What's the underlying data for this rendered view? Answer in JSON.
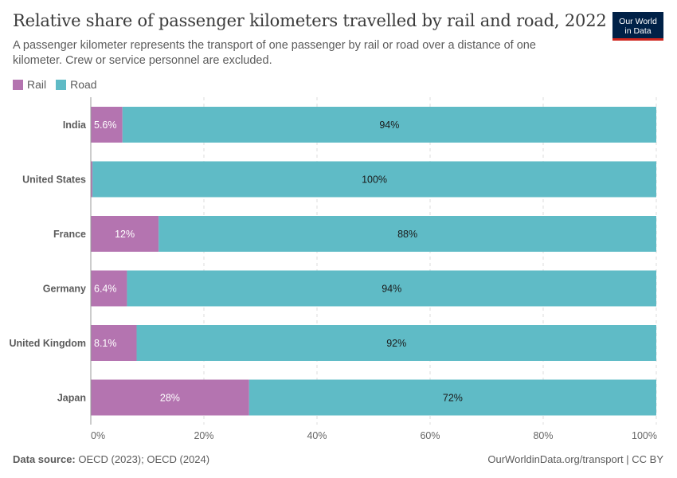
{
  "header": {
    "title": "Relative share of passenger kilometers travelled by rail and road, 2022",
    "subtitle": "A passenger kilometer represents the transport of one passenger by rail or road over a distance of one kilometer. Crew or service personnel are excluded.",
    "logo_line1": "Our World",
    "logo_line2": "in Data"
  },
  "footer": {
    "source_label": "Data source:",
    "source_text": "OECD (2023); OECD (2024)",
    "url": "OurWorldinData.org/transport | CC BY"
  },
  "chart_data": {
    "type": "bar",
    "orientation": "horizontal",
    "stacked": true,
    "categories": [
      "India",
      "United States",
      "France",
      "Germany",
      "United Kingdom",
      "Japan"
    ],
    "series": [
      {
        "name": "Rail",
        "color": "#b474b0",
        "values": [
          5.6,
          0.3,
          12,
          6.4,
          8.1,
          28
        ],
        "labels": [
          "5.6%",
          "",
          "12%",
          "6.4%",
          "8.1%",
          "28%"
        ]
      },
      {
        "name": "Road",
        "color": "#5fbbc6",
        "values": [
          94.4,
          99.7,
          88,
          93.6,
          91.9,
          72
        ],
        "labels": [
          "94%",
          "100%",
          "88%",
          "94%",
          "92%",
          "72%"
        ]
      }
    ],
    "xlim": [
      0,
      100
    ],
    "xticks": [
      0,
      20,
      40,
      60,
      80,
      100
    ],
    "xtick_labels": [
      "0%",
      "20%",
      "40%",
      "60%",
      "80%",
      "100%"
    ],
    "grid": "vertical-dashed",
    "legend_position": "top-left"
  }
}
